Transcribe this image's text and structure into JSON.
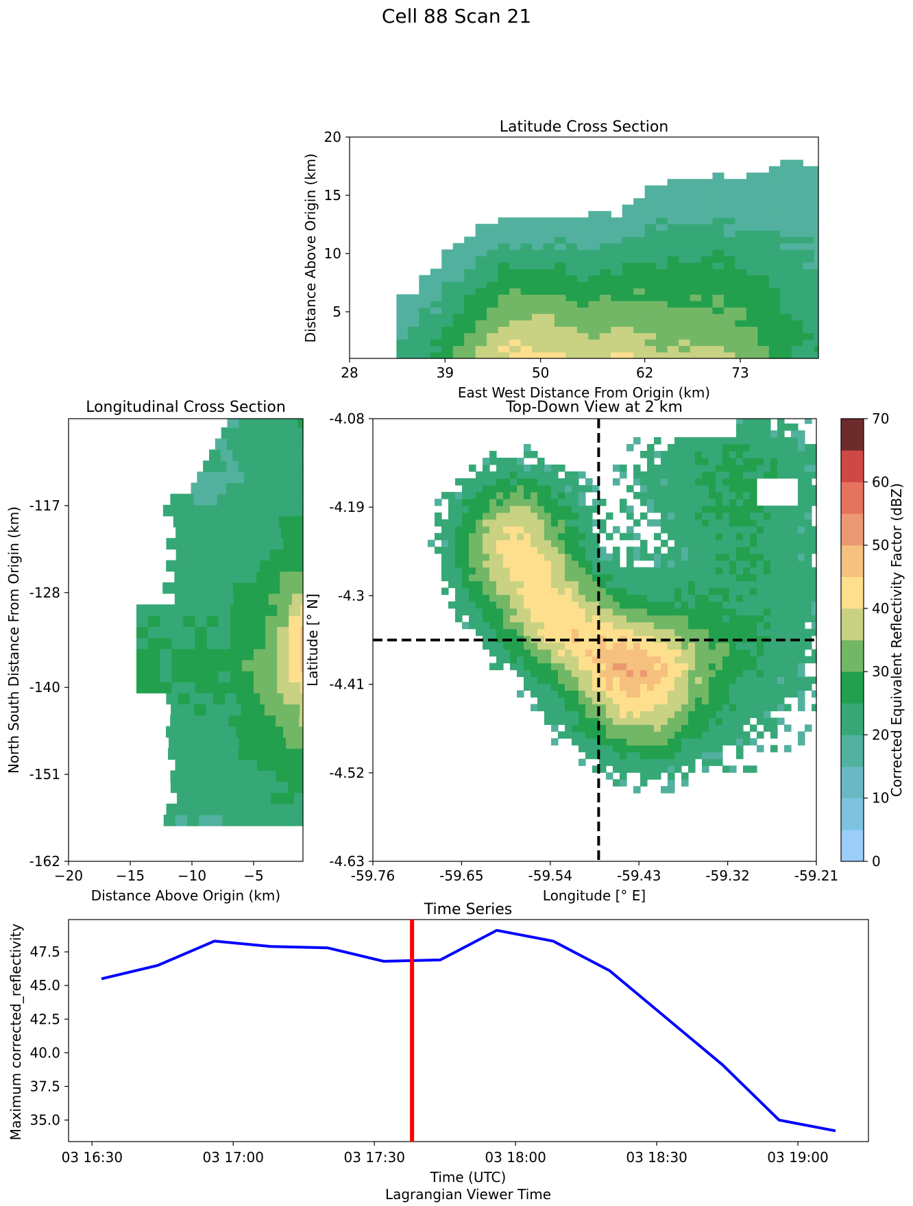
{
  "figure": {
    "suptitle": "Cell 88 Scan 21"
  },
  "chart_data": [
    {
      "id": "latitude-cross-section",
      "type": "heatmap",
      "title": "Latitude Cross Section",
      "xlabel": "East West Distance From Origin (km)",
      "ylabel": "Distance Above Origin (km)",
      "xlim": [
        28,
        82
      ],
      "ylim": [
        1,
        20
      ],
      "x_ticks": [
        "28",
        "39",
        "50",
        "62",
        "73"
      ],
      "y_ticks": [
        "5",
        "10",
        "15",
        "20"
      ],
      "approx_profile": {
        "x_km": [
          34,
          36,
          38,
          40,
          42,
          44,
          46,
          48,
          50,
          52,
          54,
          56,
          58,
          60,
          62,
          64,
          66,
          68,
          70,
          72,
          74,
          76,
          78,
          80,
          82
        ],
        "echo_top_km": [
          6,
          7,
          9,
          10.5,
          11.5,
          12.5,
          13,
          13,
          13,
          13,
          13,
          13.5,
          13.5,
          14,
          15,
          16,
          16.5,
          16.5,
          16.5,
          16.5,
          17,
          17,
          17.5,
          18,
          18
        ],
        "max_dbz": [
          22,
          24,
          26,
          30,
          34,
          38,
          41,
          42,
          42,
          41,
          39,
          38,
          40,
          40,
          38,
          36,
          36,
          36,
          35,
          35,
          33,
          31,
          27,
          25,
          24
        ]
      }
    },
    {
      "id": "longitudinal-cross-section",
      "type": "heatmap",
      "title": "Longitudinal Cross Section",
      "xlabel": "Distance Above Origin (km)",
      "ylabel": "North South Distance From Origin (km)",
      "xlim": [
        -20,
        -1
      ],
      "ylim": [
        -162,
        -106
      ],
      "x_ticks": [
        "−20",
        "−15",
        "−10",
        "−5"
      ],
      "y_ticks": [
        "-117",
        "-128",
        "-140",
        "-151",
        "-162"
      ]
    },
    {
      "id": "top-down-view",
      "type": "heatmap",
      "title": "Top-Down View at 2 km",
      "xlabel": "Longitude [° E]",
      "ylabel": "Latitude [° N]",
      "xlim": [
        -59.76,
        -59.21
      ],
      "ylim": [
        -4.63,
        -4.08
      ],
      "x_ticks": [
        "-59.76",
        "-59.65",
        "-59.54",
        "-59.43",
        "-59.32",
        "-59.21"
      ],
      "y_ticks": [
        "-4.08",
        "-4.19",
        "-4.3",
        "-4.41",
        "-4.52",
        "-4.63"
      ],
      "crosshair": {
        "longitude": -59.48,
        "latitude": -4.355
      }
    },
    {
      "id": "colorbar",
      "type": "heatmap",
      "label": "Corrected Equivalent Reflectivity Factor (dBZ)",
      "range": [
        0,
        70
      ],
      "step": 5,
      "ticks": [
        "0",
        "10",
        "20",
        "30",
        "40",
        "50",
        "60",
        "70"
      ],
      "colors": [
        "#9bcdfa",
        "#7dc3e0",
        "#6ab8c4",
        "#52b19e",
        "#36a877",
        "#22a04e",
        "#72b766",
        "#c8d282",
        "#fedf8e",
        "#f6c07e",
        "#ec9872",
        "#e5735e",
        "#d04844",
        "#6e2b2b",
        "#111111"
      ]
    },
    {
      "id": "time-series",
      "type": "line",
      "title": "Time Series",
      "xlabel": "Time (UTC)",
      "xlabel2": "Lagrangian Viewer Time",
      "ylabel": "Maximum corrected_reflectivity",
      "x_ticks": [
        "03 16:30",
        "03 17:00",
        "03 17:30",
        "03 18:00",
        "03 18:30",
        "03 19:00"
      ],
      "y_ticks": [
        "35.0",
        "37.5",
        "40.0",
        "42.5",
        "45.0",
        "47.5"
      ],
      "ylim": [
        33.4,
        49.9
      ],
      "x": [
        "16:32",
        "16:44",
        "16:56",
        "17:08",
        "17:20",
        "17:32",
        "17:44",
        "17:56",
        "18:08",
        "18:20",
        "18:32",
        "18:44",
        "18:56",
        "19:08"
      ],
      "values": [
        45.5,
        46.5,
        48.3,
        47.9,
        47.8,
        46.8,
        46.9,
        49.1,
        48.3,
        46.1,
        42.6,
        39.1,
        35.0,
        34.2
      ],
      "current_time": "17:38",
      "line_color": "#0000ff",
      "marker_color": "#ff0000"
    }
  ]
}
